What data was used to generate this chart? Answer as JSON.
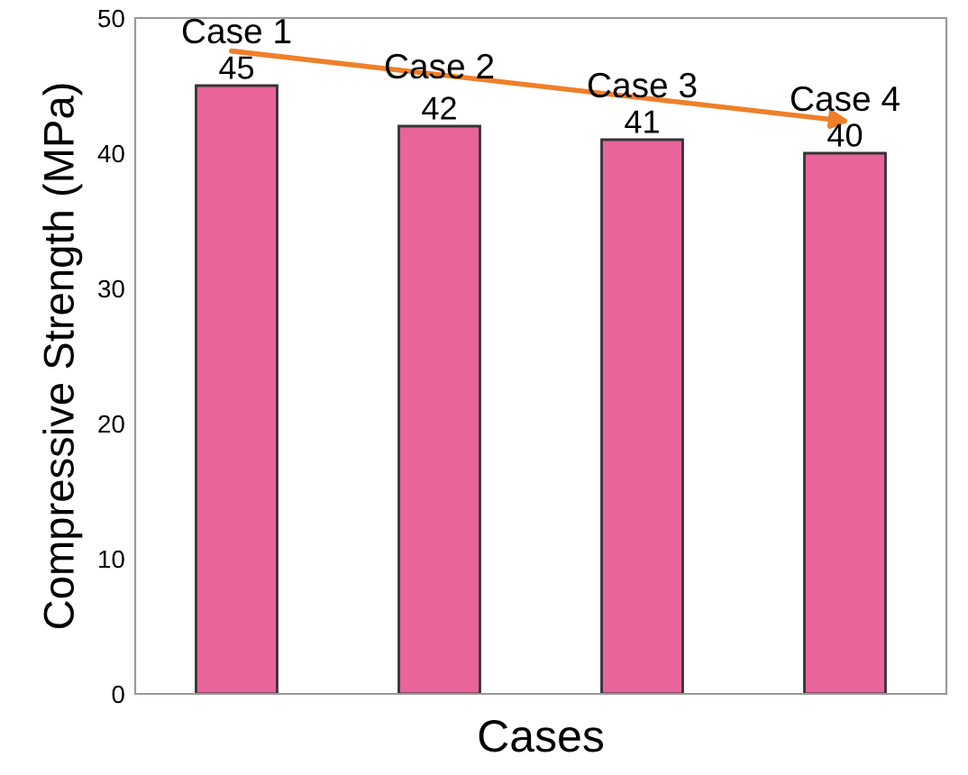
{
  "chart_data": {
    "type": "bar",
    "xlabel": "Cases",
    "ylabel": "Compressive Strength (MPa)",
    "categories": [
      "Case 1",
      "Case 2",
      "Case 3",
      "Case 4"
    ],
    "values": [
      45,
      42,
      41,
      40
    ],
    "color": "#e8649b",
    "ylim": [
      0,
      50
    ],
    "yticks": [
      0,
      10,
      20,
      30,
      40,
      50
    ],
    "data_labels": true,
    "grid": false
  }
}
